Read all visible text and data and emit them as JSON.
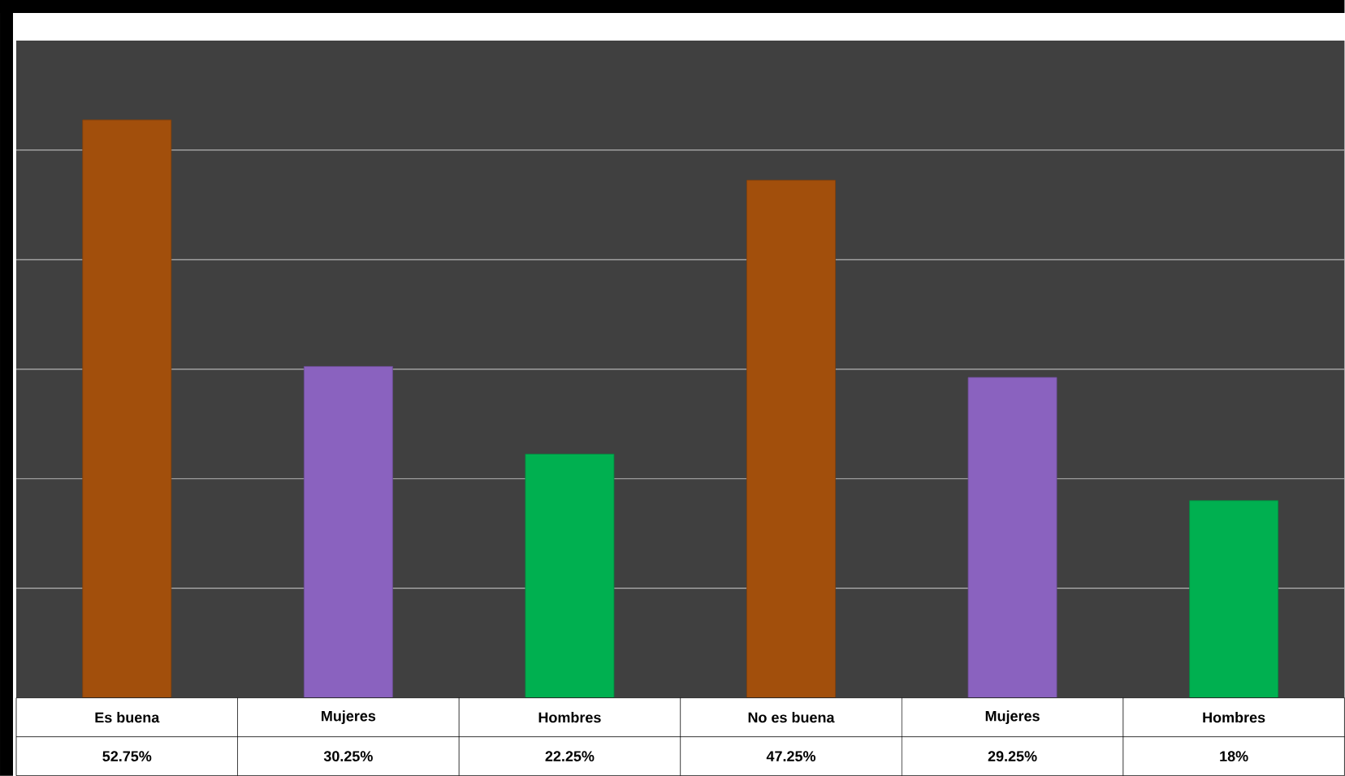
{
  "chart_data": {
    "type": "bar",
    "categories": [
      "Es buena",
      "Mujeres",
      "Hombres",
      "No es buena",
      "Mujeres",
      "Hombres"
    ],
    "values": [
      52.75,
      30.25,
      22.25,
      47.25,
      29.25,
      18
    ],
    "value_labels": [
      "52.75%",
      "30.25%",
      "22.25%",
      "47.25%",
      "29.25%",
      "18%"
    ],
    "colors": [
      "#a24f0c",
      "#8a62bf",
      "#00b050",
      "#a24f0c",
      "#8a62bf",
      "#00b050"
    ],
    "ylim": [
      0,
      60
    ],
    "yticks": [
      {
        "value": 10,
        "label": null
      },
      {
        "value": 20,
        "label": null
      },
      {
        "value": 30,
        "label": null
      },
      {
        "value": 40,
        "label": null
      },
      {
        "value": 50,
        "label": null
      }
    ],
    "grid": "y",
    "tick_labels": "x"
  }
}
